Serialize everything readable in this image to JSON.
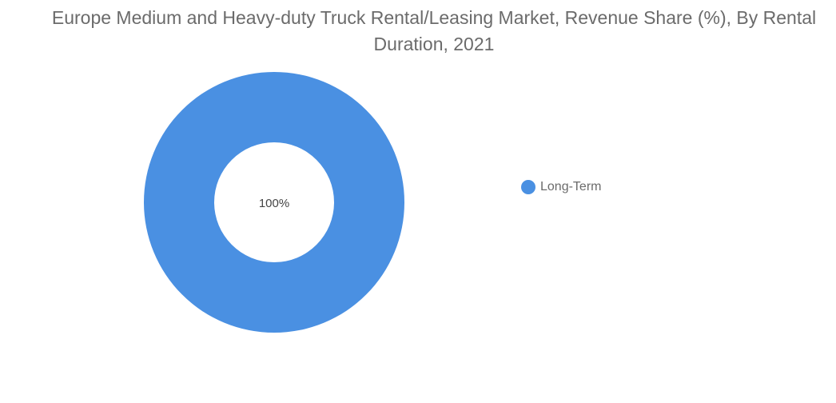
{
  "chart_data": {
    "type": "pie",
    "title": "Europe Medium and Heavy-duty Truck Rental/Leasing Market, Revenue Share (%), By Rental Duration, 2021",
    "categories": [
      "Long-Term"
    ],
    "values": [
      100
    ],
    "labels": [
      "100%"
    ],
    "colors": [
      "#4a90e2"
    ],
    "donut": true,
    "legend_position": "right"
  }
}
